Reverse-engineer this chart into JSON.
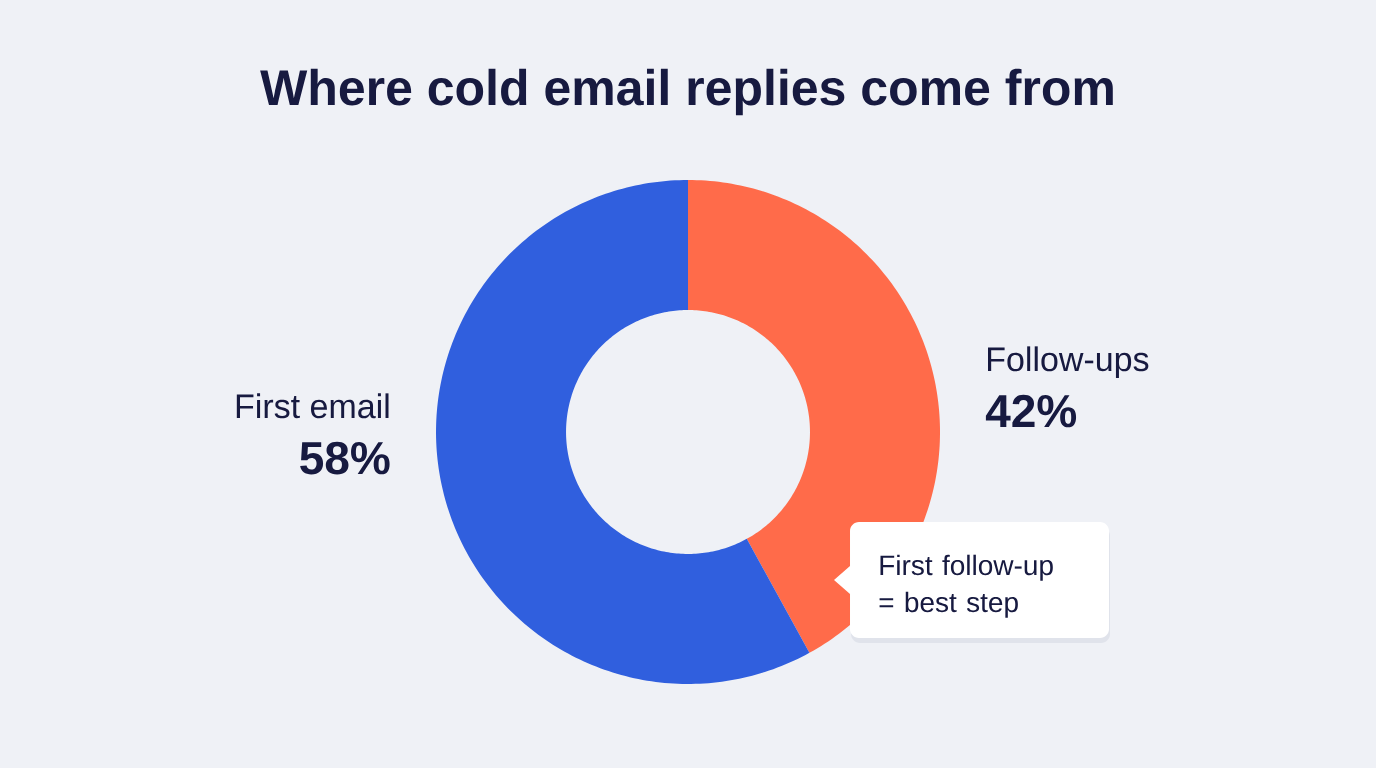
{
  "chart_data": {
    "type": "donut",
    "title": "Where cold email replies come from",
    "categories": [
      "Follow-ups",
      "First email"
    ],
    "values": [
      42,
      58
    ],
    "colors": [
      "#ff6b4a",
      "#305fde"
    ],
    "value_labels": [
      "42%",
      "58%"
    ],
    "annotations": [
      "First follow-up = best step"
    ]
  }
}
